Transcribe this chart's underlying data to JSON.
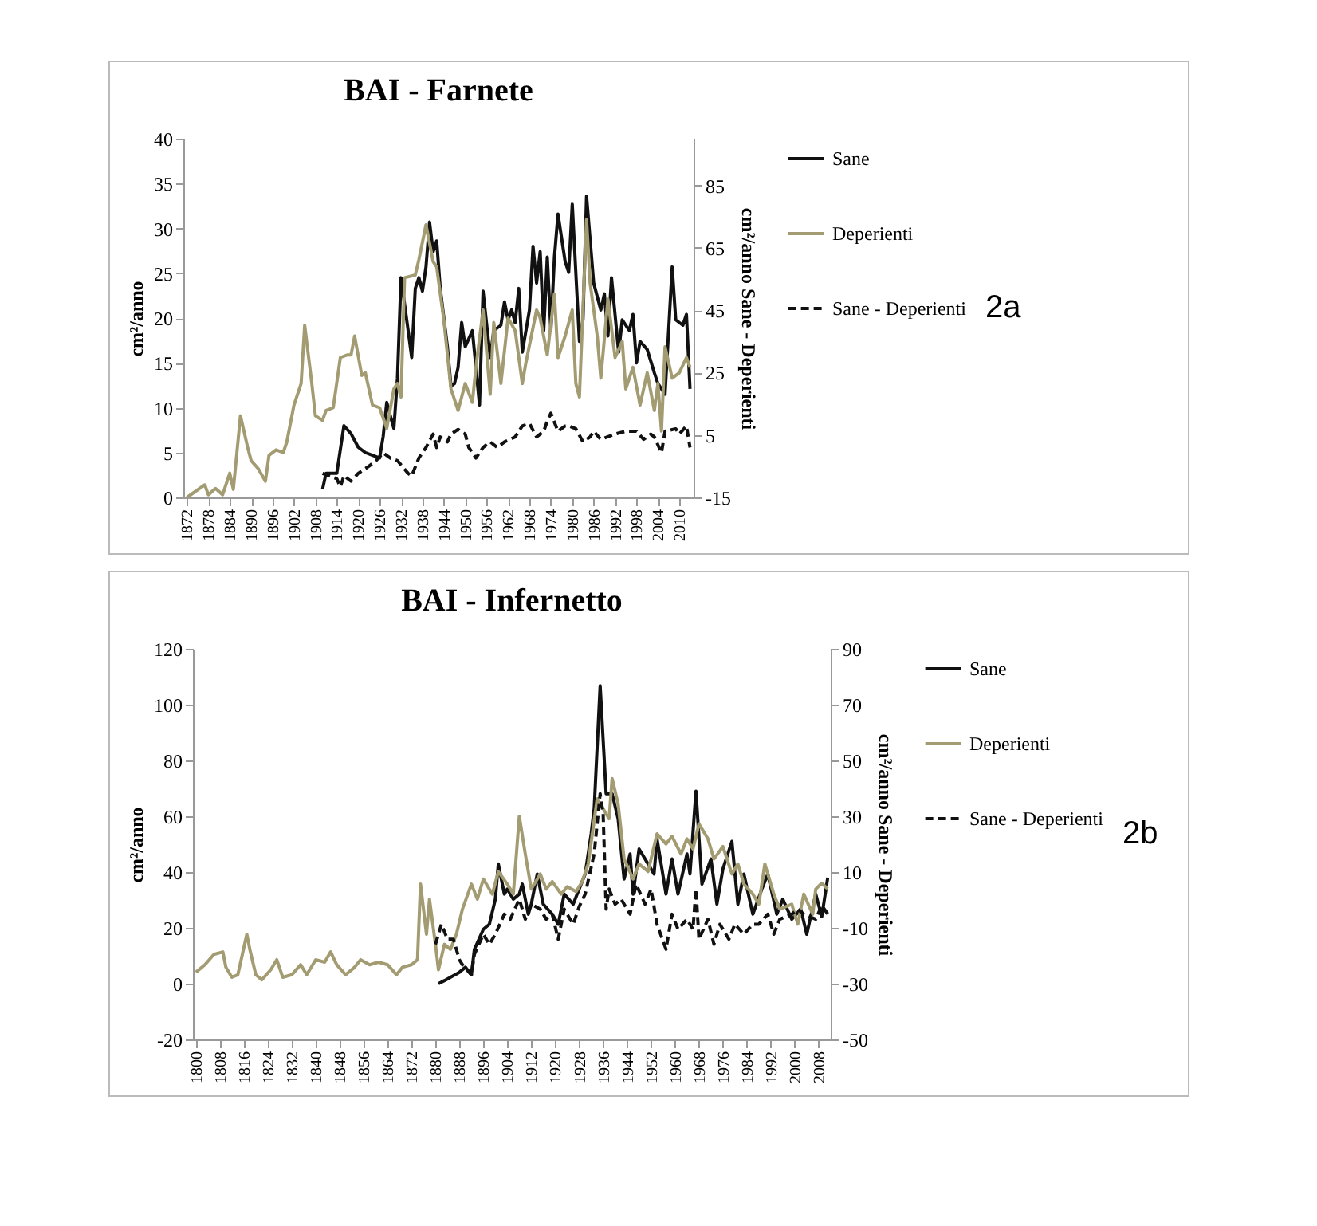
{
  "chart_data": [
    {
      "type": "line",
      "title": "BAI - Farnete",
      "ylabel": "cm²/anno",
      "y2label": "cm²/anno Sane - Deperienti",
      "annotations": [
        "2a"
      ],
      "legend": "right",
      "xlim": [
        1871,
        2014
      ],
      "xticks": [
        1872,
        1878,
        1884,
        1890,
        1896,
        1902,
        1908,
        1914,
        1920,
        1926,
        1932,
        1938,
        1944,
        1950,
        1956,
        1962,
        1968,
        1974,
        1980,
        1986,
        1992,
        1998,
        2004,
        2010
      ],
      "ylim": [
        0,
        40
      ],
      "yticks": [
        0,
        5,
        10,
        15,
        20,
        25,
        30,
        35,
        40
      ],
      "y2lim": [
        -15,
        100
      ],
      "y2ticks": [
        -15,
        5,
        25,
        45,
        65,
        85
      ],
      "series": [
        {
          "name": "Sane",
          "color": "#111111",
          "x": [
            1910,
            1911,
            1914,
            1916,
            1918,
            1920,
            1922,
            1924,
            1926,
            1927,
            1928,
            1929,
            1930,
            1931,
            1932,
            1934,
            1935,
            1936,
            1937,
            1938,
            1939,
            1940,
            1941,
            1942,
            1943,
            1945,
            1946,
            1947,
            1948,
            1949,
            1950,
            1952,
            1953,
            1954,
            1955,
            1957,
            1958,
            1960,
            1961,
            1962,
            1963,
            1964,
            1965,
            1966,
            1968,
            1969,
            1970,
            1971,
            1972,
            1973,
            1974,
            1975,
            1976,
            1978,
            1979,
            1980,
            1982,
            1983,
            1984,
            1986,
            1988,
            1989,
            1990,
            1991,
            1993,
            1994,
            1996,
            1997,
            1998,
            1999,
            2001,
            2003,
            2004,
            2006,
            2008,
            2009,
            2011,
            2012,
            2013
          ],
          "values": [
            0.9,
            2.7,
            2.7,
            8,
            7.1,
            5.6,
            5,
            4.7,
            4.4,
            6.8,
            10.6,
            9.1,
            7.7,
            13.3,
            24.5,
            18.6,
            15.6,
            23.3,
            24.5,
            23,
            25.7,
            30.7,
            27.4,
            28.6,
            23.3,
            16.8,
            12.4,
            12.7,
            14.5,
            19.5,
            16.8,
            18.6,
            14.5,
            10.3,
            23,
            15.6,
            18.6,
            19.2,
            21.8,
            19.8,
            20.9,
            19.5,
            23.3,
            16.2,
            20.9,
            28,
            23.9,
            27.4,
            18.6,
            26.8,
            18.6,
            26.8,
            31.6,
            26.3,
            25.1,
            32.7,
            17.4,
            19.8,
            33.6,
            23.9,
            20.9,
            22.7,
            18,
            24.5,
            16.2,
            19.8,
            18.6,
            20.4,
            15,
            17.4,
            16.5,
            13.9,
            12.7,
            11.5,
            25.7,
            19.8,
            19.2,
            20.4,
            12.1
          ]
        },
        {
          "name": "Deperienti",
          "color": "#a39c72",
          "x": [
            1872,
            1877,
            1878,
            1880,
            1882,
            1884,
            1885,
            1887,
            1889,
            1890,
            1892,
            1894,
            1895,
            1897,
            1899,
            1900,
            1902,
            1904,
            1905,
            1907,
            1908,
            1910,
            1911,
            1913,
            1915,
            1917,
            1918,
            1919,
            1921,
            1922,
            1924,
            1926,
            1928,
            1930,
            1931,
            1932,
            1933,
            1936,
            1937,
            1939,
            1941,
            1942,
            1944,
            1946,
            1948,
            1950,
            1952,
            1953,
            1955,
            1957,
            1958,
            1960,
            1962,
            1964,
            1966,
            1967,
            1970,
            1971,
            1973,
            1975,
            1976,
            1978,
            1980,
            1981,
            1982,
            1984,
            1985,
            1987,
            1988,
            1990,
            1992,
            1994,
            1995,
            1997,
            1999,
            2001,
            2003,
            2004,
            2005,
            2006,
            2008,
            2010,
            2012,
            2013
          ],
          "values": [
            0,
            1.4,
            0.3,
            1,
            0.3,
            2.7,
            0.9,
            9.1,
            5.6,
            4.1,
            3.2,
            1.8,
            4.7,
            5.3,
            5,
            6.2,
            10.3,
            12.7,
            19.2,
            12.7,
            9.1,
            8.6,
            9.7,
            10,
            15.6,
            15.9,
            15.9,
            18,
            13.6,
            13.9,
            10.3,
            10,
            7.7,
            12.1,
            12.7,
            11.2,
            24.5,
            24.8,
            26.5,
            30.4,
            26.3,
            25.7,
            19.8,
            12.1,
            9.7,
            12.7,
            10.6,
            14.5,
            20.9,
            11.5,
            19.5,
            12.7,
            20,
            18.6,
            12.7,
            15,
            20.9,
            20,
            15.9,
            22.7,
            15.6,
            18,
            20.9,
            12.7,
            11.2,
            31,
            23.9,
            18,
            13.3,
            22.1,
            15.6,
            17.4,
            12.1,
            14.5,
            10.3,
            13.9,
            9.7,
            12.7,
            7.4,
            16.8,
            13.3,
            13.9,
            15.6,
            14.5
          ]
        },
        {
          "name": "Sane - Deperienti",
          "color": "#111111",
          "axis": "y2",
          "line_style": "dashed",
          "x": [
            1910,
            1914,
            1915,
            1916,
            1918,
            1920,
            1923,
            1925,
            1927,
            1929,
            1931,
            1934,
            1935,
            1937,
            1939,
            1941,
            1942,
            1943,
            1945,
            1946,
            1948,
            1950,
            1951,
            1953,
            1955,
            1957,
            1959,
            1961,
            1964,
            1966,
            1968,
            1970,
            1972,
            1973,
            1974,
            1976,
            1978,
            1979,
            1981,
            1983,
            1985,
            1986,
            1988,
            1992,
            1995,
            1998,
            2000,
            2002,
            2003,
            2005,
            2006,
            2009,
            2010,
            2012,
            2013
          ],
          "values": [
            -7.3,
            -9,
            -11.6,
            -8.1,
            -9.8,
            -7.3,
            -5,
            -3.2,
            -0.7,
            -2.4,
            -3.2,
            -7.3,
            -8.1,
            -2.4,
            1,
            5.3,
            1,
            4.4,
            2.8,
            5.3,
            6.8,
            5.3,
            1,
            -2.4,
            1,
            2.8,
            1,
            2.8,
            4.4,
            7.9,
            8.7,
            4.4,
            6.2,
            9.5,
            12,
            6.2,
            7.9,
            7.9,
            7,
            2.8,
            4.4,
            6.2,
            3.6,
            5.3,
            6.2,
            6.2,
            3.6,
            5.3,
            4.4,
            -0.7,
            6.2,
            7,
            5.3,
            7.9,
            1
          ]
        }
      ]
    },
    {
      "type": "line",
      "title": "BAI - Infernetto",
      "ylabel": "cm²/anno",
      "y2label": "cm²/anno Sane - Deperienti",
      "annotations": [
        "2b"
      ],
      "legend": "right",
      "xlim": [
        1799,
        2012
      ],
      "xticks": [
        1800,
        1808,
        1816,
        1824,
        1832,
        1840,
        1848,
        1856,
        1864,
        1872,
        1880,
        1888,
        1896,
        1904,
        1912,
        1920,
        1928,
        1936,
        1944,
        1952,
        1960,
        1968,
        1976,
        1984,
        1992,
        2000,
        2008
      ],
      "ylim": [
        -20,
        120
      ],
      "yticks": [
        -20,
        0,
        20,
        40,
        60,
        80,
        100,
        120
      ],
      "y2lim": [
        -50,
        90
      ],
      "y2ticks": [
        -50,
        -30,
        -10,
        10,
        30,
        50,
        70,
        90
      ],
      "series": [
        {
          "name": "Sane",
          "color": "#111111",
          "x": [
            1881,
            1883,
            1885,
            1888,
            1890,
            1892,
            1893,
            1896,
            1898,
            1900,
            1901,
            1903,
            1904,
            1906,
            1908,
            1909,
            1911,
            1912,
            1914,
            1916,
            1919,
            1921,
            1923,
            1926,
            1928,
            1930,
            1932,
            1933,
            1935,
            1937,
            1939,
            1941,
            1943,
            1945,
            1946,
            1948,
            1950,
            1953,
            1954,
            1957,
            1959,
            1961,
            1964,
            1965,
            1967,
            1969,
            1972,
            1974,
            1976,
            1979,
            1981,
            1983,
            1986,
            1989,
            1991,
            1994,
            1996,
            1999,
            2002,
            2004,
            2007,
            2009,
            2011
          ],
          "values": [
            0,
            1.1,
            2.3,
            4.1,
            5.9,
            3.2,
            12.3,
            19.5,
            21.3,
            30.3,
            42.9,
            32.1,
            33.9,
            30.3,
            32.1,
            35.7,
            24.9,
            28.5,
            39.3,
            28.5,
            24.9,
            21.3,
            32.1,
            28.5,
            33.9,
            39.3,
            53.7,
            62.7,
            106.8,
            68.1,
            68.1,
            59.1,
            37.5,
            46.5,
            32.1,
            48.3,
            44.7,
            39.3,
            51.9,
            32.1,
            44.7,
            32.1,
            46.5,
            39.3,
            69,
            35.7,
            44.7,
            28.5,
            41.1,
            51,
            28.5,
            39.3,
            24.9,
            33.9,
            39.3,
            24.9,
            30.3,
            23.1,
            26.7,
            17.7,
            32.1,
            24,
            38
          ]
        },
        {
          "name": "Deperienti",
          "color": "#a39c72",
          "x": [
            1800,
            1803,
            1806,
            1809,
            1810,
            1812,
            1814,
            1817,
            1818,
            1820,
            1822,
            1825,
            1827,
            1829,
            1832,
            1835,
            1837,
            1840,
            1843,
            1845,
            1847,
            1850,
            1853,
            1855,
            1858,
            1861,
            1864,
            1867,
            1869,
            1872,
            1874,
            1875,
            1877,
            1878,
            1880,
            1881,
            1883,
            1885,
            1887,
            1889,
            1892,
            1894,
            1896,
            1899,
            1901,
            1904,
            1906,
            1908,
            1910,
            1912,
            1915,
            1917,
            1919,
            1922,
            1924,
            1927,
            1929,
            1931,
            1934,
            1936,
            1938,
            1939,
            1941,
            1943,
            1946,
            1948,
            1951,
            1954,
            1957,
            1959,
            1962,
            1964,
            1966,
            1968,
            1971,
            1973,
            1976,
            1979,
            1981,
            1983,
            1986,
            1988,
            1990,
            1993,
            1995,
            1999,
            2001,
            2003,
            2006,
            2007,
            2009,
            2011
          ],
          "values": [
            4.1,
            6.8,
            10.5,
            11.4,
            5.9,
            2.3,
            3.2,
            17.7,
            12.3,
            3.2,
            1.4,
            5,
            8.6,
            2.3,
            3.2,
            6.8,
            3.2,
            8.6,
            7.7,
            11.4,
            6.8,
            3.2,
            5.9,
            8.6,
            6.8,
            7.7,
            6.8,
            3.2,
            5.9,
            6.8,
            8.6,
            35.7,
            17.7,
            30.3,
            14.1,
            5,
            14.1,
            12.3,
            17.7,
            26.7,
            35.7,
            30.3,
            37.5,
            32.1,
            40.2,
            35.7,
            32.1,
            60,
            46.5,
            33.9,
            39.3,
            33.9,
            36.6,
            32.1,
            34.8,
            33,
            36.6,
            42.9,
            66.3,
            62.7,
            59.1,
            73.5,
            64.5,
            44.7,
            37.5,
            42.9,
            40.2,
            53.7,
            50.1,
            52.8,
            46.5,
            51.9,
            48.3,
            57.3,
            51.9,
            44.7,
            49.2,
            39.3,
            42.9,
            35.7,
            32.1,
            28.5,
            42.9,
            32.1,
            26.7,
            28.5,
            21.3,
            32.1,
            24.9,
            33.9,
            36,
            34
          ]
        },
        {
          "name": "Sane - Deperienti",
          "color": "#111111",
          "axis": "y2",
          "line_style": "dashed",
          "x": [
            1880,
            1882,
            1884,
            1886,
            1888,
            1889,
            1892,
            1893,
            1896,
            1898,
            1900,
            1903,
            1905,
            1908,
            1910,
            1912,
            1915,
            1917,
            1919,
            1921,
            1923,
            1926,
            1928,
            1930,
            1933,
            1935,
            1936,
            1937,
            1938,
            1940,
            1942,
            1945,
            1947,
            1950,
            1952,
            1954,
            1957,
            1959,
            1961,
            1964,
            1966,
            1967,
            1968,
            1971,
            1973,
            1975,
            1978,
            1980,
            1983,
            1986,
            1988,
            1991,
            1993,
            1995,
            1999,
            2001,
            2003,
            2007,
            2009,
            2011
          ],
          "values": [
            -15.9,
            -8.7,
            -14.1,
            -14.1,
            -21.4,
            -23.2,
            -26.8,
            -19.5,
            -12.3,
            -15.9,
            -12.3,
            -5.1,
            -6.9,
            0.3,
            -6.9,
            -1.5,
            -3.3,
            -6.9,
            -5.1,
            -14.1,
            -3.3,
            -8.7,
            -2.4,
            2.1,
            16.5,
            38.1,
            30.9,
            -3.3,
            3.9,
            -1.5,
            0.3,
            -5.1,
            5.7,
            -1.5,
            3.9,
            -8.7,
            -17.7,
            -5.1,
            -10.5,
            -6.9,
            -10.5,
            3.9,
            -14.1,
            -6.9,
            -15.9,
            -8.7,
            -14.1,
            -8.7,
            -12.3,
            -8.7,
            -8.7,
            -5.1,
            -12.3,
            -6.9,
            -5.1,
            -3.3,
            -5.1,
            -6.9,
            -2,
            -5
          ]
        }
      ]
    }
  ]
}
